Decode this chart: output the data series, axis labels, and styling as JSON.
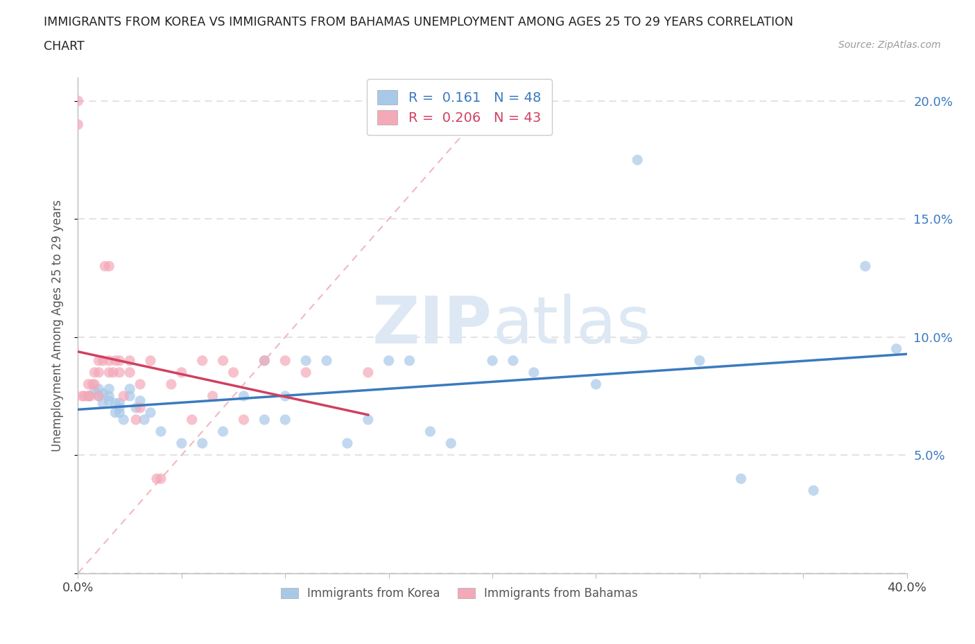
{
  "title_line1": "IMMIGRANTS FROM KOREA VS IMMIGRANTS FROM BAHAMAS UNEMPLOYMENT AMONG AGES 25 TO 29 YEARS CORRELATION",
  "title_line2": "CHART",
  "source": "Source: ZipAtlas.com",
  "ylabel": "Unemployment Among Ages 25 to 29 years",
  "xlim": [
    0.0,
    0.4
  ],
  "ylim": [
    0.0,
    0.21
  ],
  "xticks": [
    0.0,
    0.05,
    0.1,
    0.15,
    0.2,
    0.25,
    0.3,
    0.35,
    0.4
  ],
  "yticks": [
    0.0,
    0.05,
    0.1,
    0.15,
    0.2
  ],
  "korea_R": 0.161,
  "korea_N": 48,
  "bahamas_R": 0.206,
  "bahamas_N": 43,
  "korea_color": "#a8c8e8",
  "bahamas_color": "#f4a8b8",
  "korea_line_color": "#3a7abf",
  "bahamas_line_color": "#d04060",
  "diag_color": "#f0b8c0",
  "watermark_color": "#dde8f4",
  "korea_x": [
    0.005,
    0.008,
    0.01,
    0.01,
    0.012,
    0.012,
    0.015,
    0.015,
    0.015,
    0.018,
    0.018,
    0.02,
    0.02,
    0.02,
    0.022,
    0.025,
    0.025,
    0.028,
    0.03,
    0.032,
    0.035,
    0.04,
    0.05,
    0.06,
    0.07,
    0.08,
    0.09,
    0.09,
    0.1,
    0.1,
    0.11,
    0.12,
    0.13,
    0.14,
    0.15,
    0.16,
    0.17,
    0.18,
    0.2,
    0.21,
    0.22,
    0.25,
    0.27,
    0.3,
    0.32,
    0.355,
    0.38,
    0.395
  ],
  "korea_y": [
    0.075,
    0.077,
    0.075,
    0.078,
    0.072,
    0.076,
    0.073,
    0.075,
    0.078,
    0.068,
    0.072,
    0.07,
    0.072,
    0.068,
    0.065,
    0.075,
    0.078,
    0.07,
    0.073,
    0.065,
    0.068,
    0.06,
    0.055,
    0.055,
    0.06,
    0.075,
    0.09,
    0.065,
    0.075,
    0.065,
    0.09,
    0.09,
    0.055,
    0.065,
    0.09,
    0.09,
    0.06,
    0.055,
    0.09,
    0.09,
    0.085,
    0.08,
    0.175,
    0.09,
    0.04,
    0.035,
    0.13,
    0.095
  ],
  "bahamas_x": [
    0.0,
    0.0,
    0.002,
    0.003,
    0.005,
    0.005,
    0.006,
    0.007,
    0.008,
    0.008,
    0.01,
    0.01,
    0.01,
    0.012,
    0.013,
    0.015,
    0.015,
    0.015,
    0.017,
    0.018,
    0.02,
    0.02,
    0.022,
    0.025,
    0.025,
    0.028,
    0.03,
    0.03,
    0.035,
    0.038,
    0.04,
    0.045,
    0.05,
    0.055,
    0.06,
    0.065,
    0.07,
    0.075,
    0.08,
    0.09,
    0.1,
    0.11,
    0.14
  ],
  "bahamas_y": [
    0.19,
    0.2,
    0.075,
    0.075,
    0.08,
    0.075,
    0.075,
    0.08,
    0.085,
    0.08,
    0.09,
    0.085,
    0.075,
    0.09,
    0.13,
    0.09,
    0.085,
    0.13,
    0.085,
    0.09,
    0.09,
    0.085,
    0.075,
    0.09,
    0.085,
    0.065,
    0.07,
    0.08,
    0.09,
    0.04,
    0.04,
    0.08,
    0.085,
    0.065,
    0.09,
    0.075,
    0.09,
    0.085,
    0.065,
    0.09,
    0.09,
    0.085,
    0.085
  ]
}
